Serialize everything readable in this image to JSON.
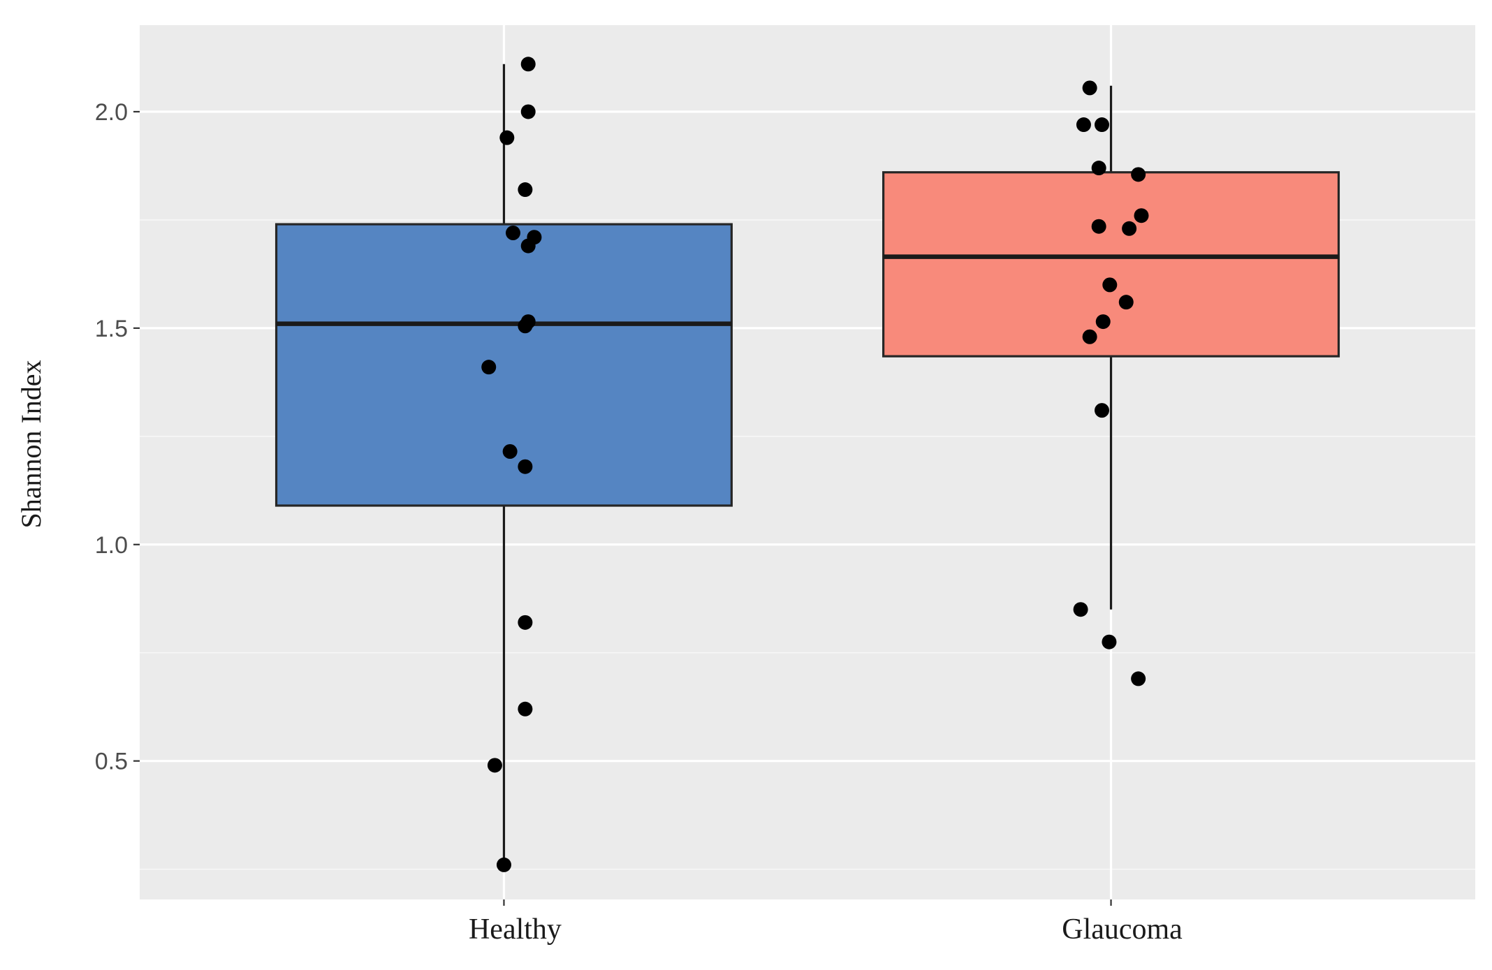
{
  "chart_data": {
    "type": "boxplot",
    "title": "",
    "xlabel": "",
    "ylabel": "Shannon Index",
    "ylim": [
      0.18,
      2.2
    ],
    "yticks": [
      0.5,
      1.0,
      1.5,
      2.0
    ],
    "ytick_labels": [
      "0.5",
      "1.0",
      "1.5",
      "2.0"
    ],
    "grid": true,
    "background": "#ebebeb",
    "categories": [
      "Healthy",
      "Glaucoma"
    ],
    "series": [
      {
        "name": "Healthy",
        "fill": "#5585c2",
        "whisker_low": 0.26,
        "q1": 1.09,
        "median": 1.51,
        "q3": 1.74,
        "whisker_high": 2.11,
        "points": [
          {
            "jitter": 0.04,
            "y": 2.11
          },
          {
            "jitter": 0.04,
            "y": 2.0
          },
          {
            "jitter": 0.005,
            "y": 1.94
          },
          {
            "jitter": 0.035,
            "y": 1.82
          },
          {
            "jitter": 0.015,
            "y": 1.72
          },
          {
            "jitter": 0.05,
            "y": 1.71
          },
          {
            "jitter": 0.04,
            "y": 1.69
          },
          {
            "jitter": 0.04,
            "y": 1.515
          },
          {
            "jitter": 0.035,
            "y": 1.505
          },
          {
            "jitter": -0.025,
            "y": 1.41
          },
          {
            "jitter": 0.01,
            "y": 1.215
          },
          {
            "jitter": 0.035,
            "y": 1.18
          },
          {
            "jitter": 0.035,
            "y": 0.82
          },
          {
            "jitter": 0.035,
            "y": 0.62
          },
          {
            "jitter": -0.015,
            "y": 0.49
          },
          {
            "jitter": 0.0,
            "y": 0.26
          }
        ]
      },
      {
        "name": "Glaucoma",
        "fill": "#f88a7b",
        "whisker_low": 0.85,
        "q1": 1.435,
        "median": 1.665,
        "q3": 1.86,
        "whisker_high": 2.06,
        "points": [
          {
            "jitter": -0.035,
            "y": 2.055
          },
          {
            "jitter": -0.045,
            "y": 1.97
          },
          {
            "jitter": -0.015,
            "y": 1.97
          },
          {
            "jitter": -0.02,
            "y": 1.87
          },
          {
            "jitter": 0.045,
            "y": 1.855
          },
          {
            "jitter": 0.05,
            "y": 1.76
          },
          {
            "jitter": -0.02,
            "y": 1.735
          },
          {
            "jitter": 0.03,
            "y": 1.73
          },
          {
            "jitter": -0.002,
            "y": 1.6
          },
          {
            "jitter": 0.025,
            "y": 1.56
          },
          {
            "jitter": -0.013,
            "y": 1.515
          },
          {
            "jitter": -0.035,
            "y": 1.48
          },
          {
            "jitter": -0.015,
            "y": 1.31
          },
          {
            "jitter": -0.05,
            "y": 0.85
          },
          {
            "jitter": -0.003,
            "y": 0.775
          },
          {
            "jitter": 0.045,
            "y": 0.69
          }
        ]
      }
    ]
  }
}
